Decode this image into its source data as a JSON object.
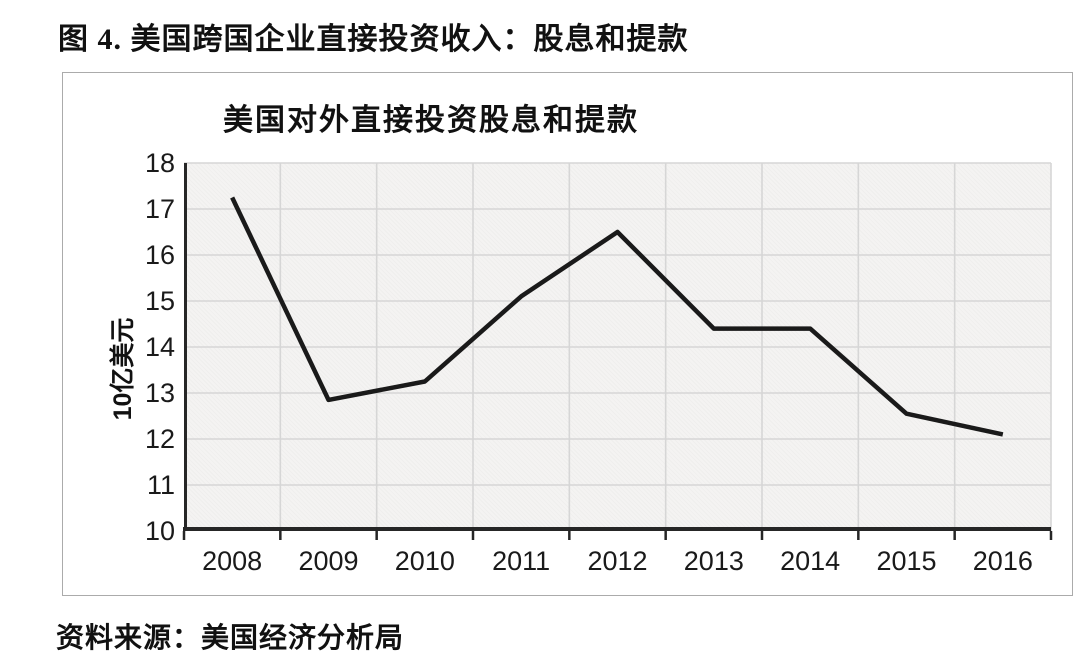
{
  "page": {
    "figure_title": "图 4. 美国跨国企业直接投资收入：股息和提款",
    "source_note": "资料来源：美国经济分析局"
  },
  "chart_data": {
    "type": "line",
    "title": "美国对外直接投资股息和提款",
    "xlabel": "",
    "ylabel": "10亿美元",
    "categories": [
      "2008",
      "2009",
      "2010",
      "2011",
      "2012",
      "2013",
      "2014",
      "2015",
      "2016"
    ],
    "series": [
      {
        "name": "美国对外直接投资股息和提款",
        "values": [
          17.25,
          12.85,
          13.25,
          15.1,
          16.5,
          14.4,
          14.4,
          12.55,
          12.1
        ]
      }
    ],
    "ylim": [
      10,
      18
    ],
    "yticks": [
      10,
      11,
      12,
      13,
      14,
      15,
      16,
      17,
      18
    ],
    "grid": true,
    "legend": "none",
    "colors": {
      "line": "#1a1a1a",
      "grid": "#d6d6d6",
      "axis": "#262626",
      "plot_background": "#f4f3f2",
      "text": "#1a1a1a"
    }
  }
}
